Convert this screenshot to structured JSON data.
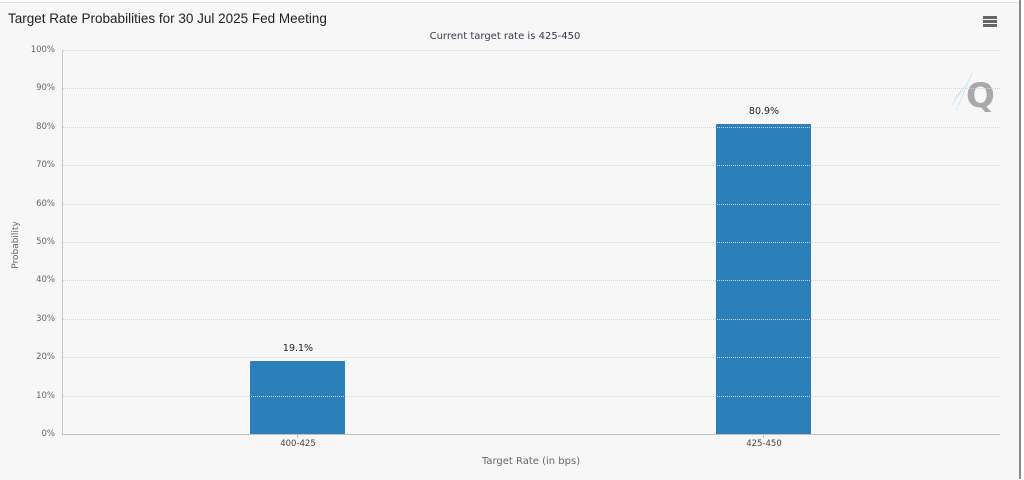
{
  "chart": {
    "title": "Target Rate Probabilities for 30 Jul 2025 Fed Meeting",
    "subtitle": "Current target rate is 425-450",
    "menu_icon": "hamburger-menu-icon",
    "logo_icon": "quikstrike-q-logo-icon",
    "bar_color": "#2b7fba",
    "y_ticks": [
      "100%",
      "90%",
      "80%",
      "70%",
      "60%",
      "50%",
      "40%",
      "30%",
      "20%",
      "10%",
      "0%"
    ],
    "x_ticks": [
      "400-425",
      "425-450"
    ],
    "bar_labels": [
      "19.1%",
      "80.9%"
    ],
    "ylabel": "Probability",
    "xlabel": "Target Rate (in bps)"
  },
  "chart_data": {
    "type": "bar",
    "title": "Target Rate Probabilities for 30 Jul 2025 Fed Meeting",
    "subtitle": "Current target rate is 425-450",
    "categories": [
      "400-425",
      "425-450"
    ],
    "values": [
      19.1,
      80.9
    ],
    "value_labels": [
      "19.1%",
      "80.9%"
    ],
    "xlabel": "Target Rate (in bps)",
    "ylabel": "Probability",
    "ylim": [
      0,
      100
    ],
    "y_tick_step": 10,
    "y_unit": "%",
    "grid": true,
    "legend": null,
    "color": "#2b7fba"
  }
}
